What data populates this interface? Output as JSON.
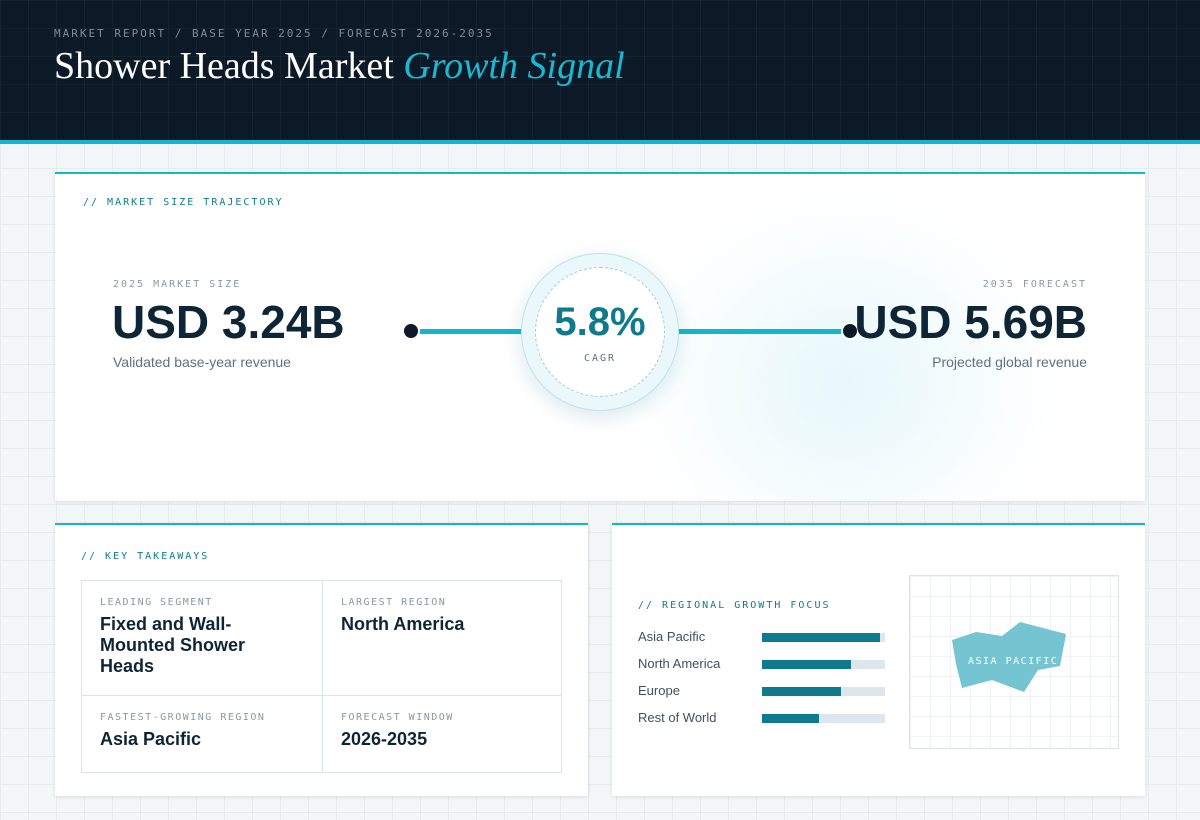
{
  "header": {
    "eyebrow": "MARKET REPORT / BASE YEAR 2025 / FORECAST 2026-2035",
    "title_main": "Shower Heads Market ",
    "title_accent": "Growth Signal"
  },
  "trajectory": {
    "section_label": "// MARKET SIZE TRAJECTORY",
    "start": {
      "label": "2025 MARKET SIZE",
      "value": "USD 3.24B",
      "sub": "Validated base-year revenue"
    },
    "cagr": {
      "value": "5.8%",
      "label": "CAGR"
    },
    "end": {
      "label": "2035 FORECAST",
      "value": "USD 5.69B",
      "sub": "Projected global revenue"
    }
  },
  "takeaways": {
    "section_label": "// KEY TAKEAWAYS",
    "items": [
      {
        "label": "LEADING SEGMENT",
        "value": "Fixed and Wall-Mounted Shower Heads"
      },
      {
        "label": "LARGEST REGION",
        "value": "North America"
      },
      {
        "label": "FASTEST-GROWING REGION",
        "value": "Asia Pacific"
      },
      {
        "label": "FORECAST WINDOW",
        "value": "2026-2035"
      }
    ]
  },
  "regional": {
    "section_label": "// REGIONAL GROWTH FOCUS",
    "bars": [
      {
        "name": "Asia Pacific",
        "level": 0.96
      },
      {
        "name": "North America",
        "level": 0.72
      },
      {
        "name": "Europe",
        "level": 0.64
      },
      {
        "name": "Rest of World",
        "level": 0.46
      }
    ],
    "map_label": "ASIA PACIFIC",
    "colors": {
      "accent": "#13b5cf",
      "bar": "#0f7a8c",
      "map_shape": "#74c4d2"
    }
  }
}
